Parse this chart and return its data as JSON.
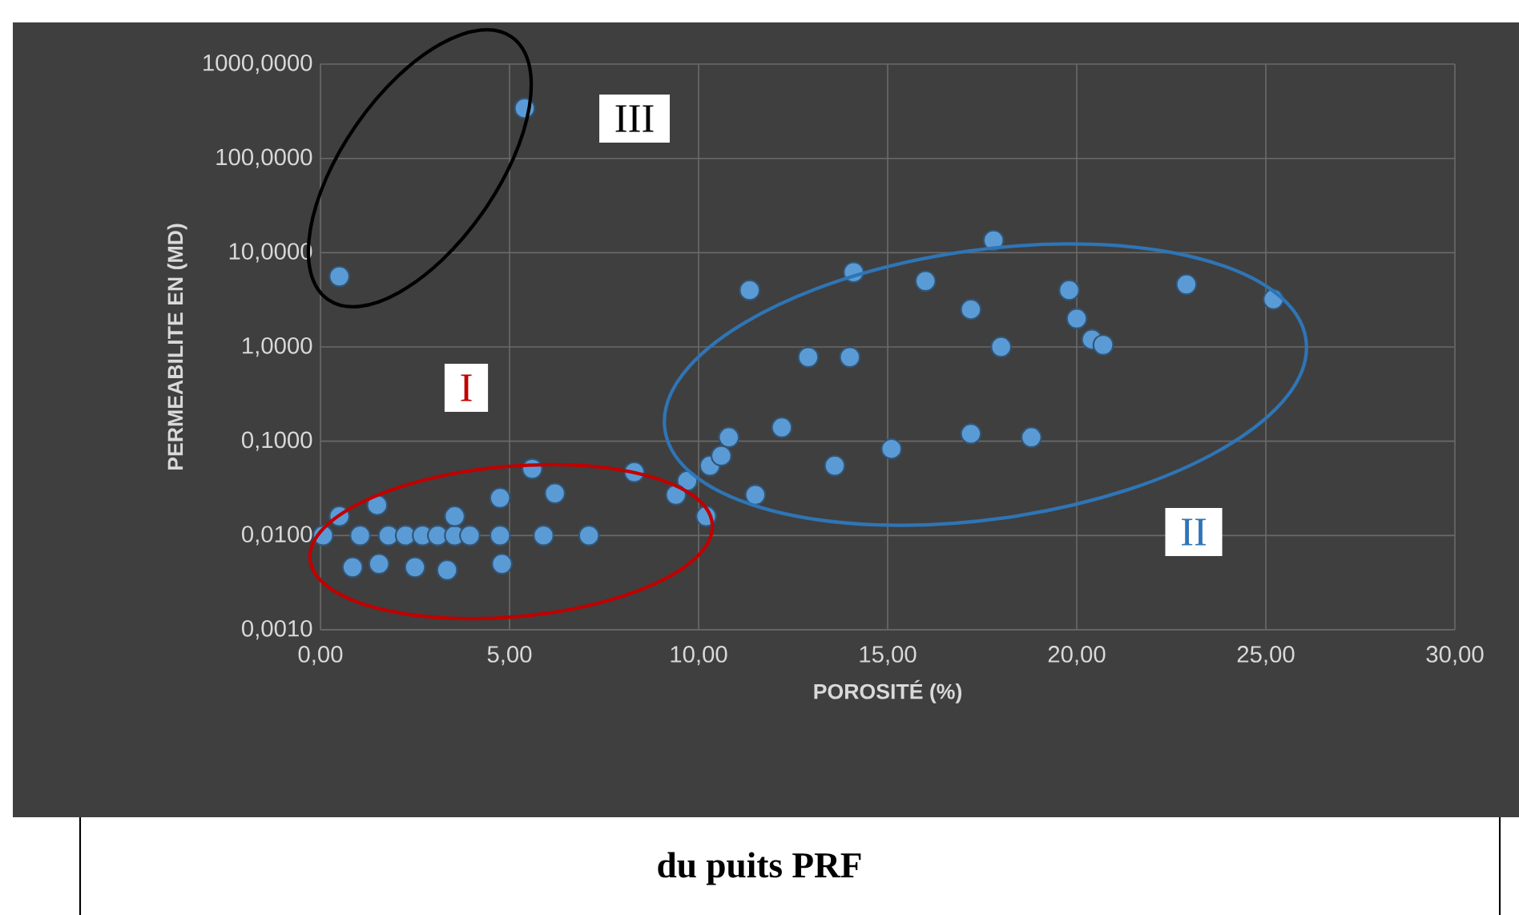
{
  "chart_data": {
    "type": "scatter",
    "xlabel": "POROSITÉ (%)",
    "ylabel": "PERMEABILITE EN  (MD)",
    "log": "y",
    "grid": true,
    "marker": "circle",
    "color": "#5b9bd5",
    "xlim": [
      0,
      30
    ],
    "ylim": [
      0.001,
      1000
    ],
    "xticks": [
      {
        "value": 0,
        "label": "0,00"
      },
      {
        "value": 5,
        "label": "5,00"
      },
      {
        "value": 10,
        "label": "10,00"
      },
      {
        "value": 15,
        "label": "15,00"
      },
      {
        "value": 20,
        "label": "20,00"
      },
      {
        "value": 25,
        "label": "25,00"
      },
      {
        "value": 30,
        "label": "30,00"
      }
    ],
    "yticks": [
      {
        "value": 0.001,
        "label": "0,0010"
      },
      {
        "value": 0.01,
        "label": "0,0100"
      },
      {
        "value": 0.1,
        "label": "0,1000"
      },
      {
        "value": 1,
        "label": "1,0000"
      },
      {
        "value": 10,
        "label": "10,0000"
      },
      {
        "value": 100,
        "label": "100,0000"
      },
      {
        "value": 1000,
        "label": "1000,0000"
      }
    ],
    "x": [
      0.5,
      5.4,
      17.8,
      11.35,
      14.1,
      16.0,
      17.2,
      19.8,
      22.9,
      25.2,
      20.0,
      20.4,
      20.7,
      18.0,
      12.9,
      14.0,
      12.2,
      10.8,
      15.1,
      17.2,
      18.8,
      13.6,
      10.3,
      10.6,
      11.5,
      10.2,
      9.7,
      9.4,
      8.3,
      5.6,
      6.2,
      4.75,
      1.5,
      0.5,
      0.07,
      1.05,
      1.8,
      2.25,
      2.7,
      3.1,
      3.55,
      3.95,
      3.55,
      4.75,
      5.9,
      7.1,
      0.85,
      1.55,
      2.5,
      3.35,
      4.8
    ],
    "values": [
      5.6,
      340,
      13.5,
      4.0,
      6.2,
      5.0,
      2.5,
      4.0,
      4.6,
      3.2,
      2.0,
      1.2,
      1.05,
      1.0,
      0.78,
      0.78,
      0.14,
      0.11,
      0.083,
      0.12,
      0.11,
      0.055,
      0.055,
      0.07,
      0.027,
      0.016,
      0.038,
      0.027,
      0.047,
      0.051,
      0.028,
      0.025,
      0.021,
      0.016,
      0.01,
      0.01,
      0.01,
      0.01,
      0.01,
      0.01,
      0.01,
      0.01,
      0.016,
      0.01,
      0.01,
      0.01,
      0.0046,
      0.005,
      0.0046,
      0.0043,
      0.005
    ],
    "annotations": [
      "I",
      "II",
      "III",
      "du puits PRF"
    ]
  }
}
